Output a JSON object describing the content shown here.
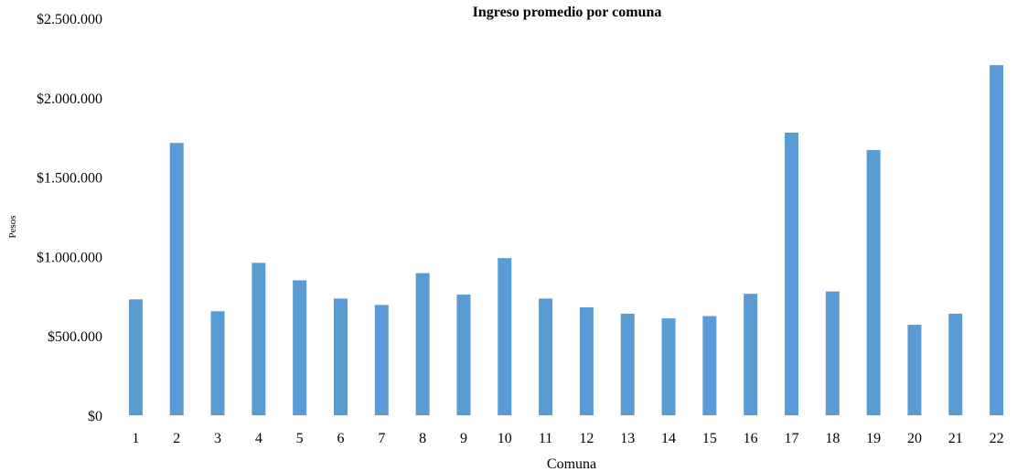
{
  "chart_data": {
    "type": "bar",
    "title": "Ingreso promedio por comuna",
    "xlabel": "Comuna",
    "ylabel": "Pesos",
    "categories": [
      "1",
      "2",
      "3",
      "4",
      "5",
      "6",
      "7",
      "8",
      "9",
      "10",
      "11",
      "12",
      "13",
      "14",
      "15",
      "16",
      "17",
      "18",
      "19",
      "20",
      "21",
      "22"
    ],
    "values": [
      730000,
      1715000,
      655000,
      960000,
      850000,
      735000,
      695000,
      895000,
      760000,
      990000,
      735000,
      680000,
      640000,
      610000,
      625000,
      765000,
      1780000,
      780000,
      1670000,
      570000,
      640000,
      2205000
    ],
    "ylim": [
      0,
      2500000
    ],
    "yticks": [
      0,
      500000,
      1000000,
      1500000,
      2000000,
      2500000
    ],
    "ytick_labels": [
      "$0",
      "$500.000",
      "$1.000.000",
      "$1.500.000",
      "$2.000.000",
      "$2.500.000"
    ],
    "grid": false,
    "legend": "none",
    "bar_color": "#5B9BD5"
  }
}
